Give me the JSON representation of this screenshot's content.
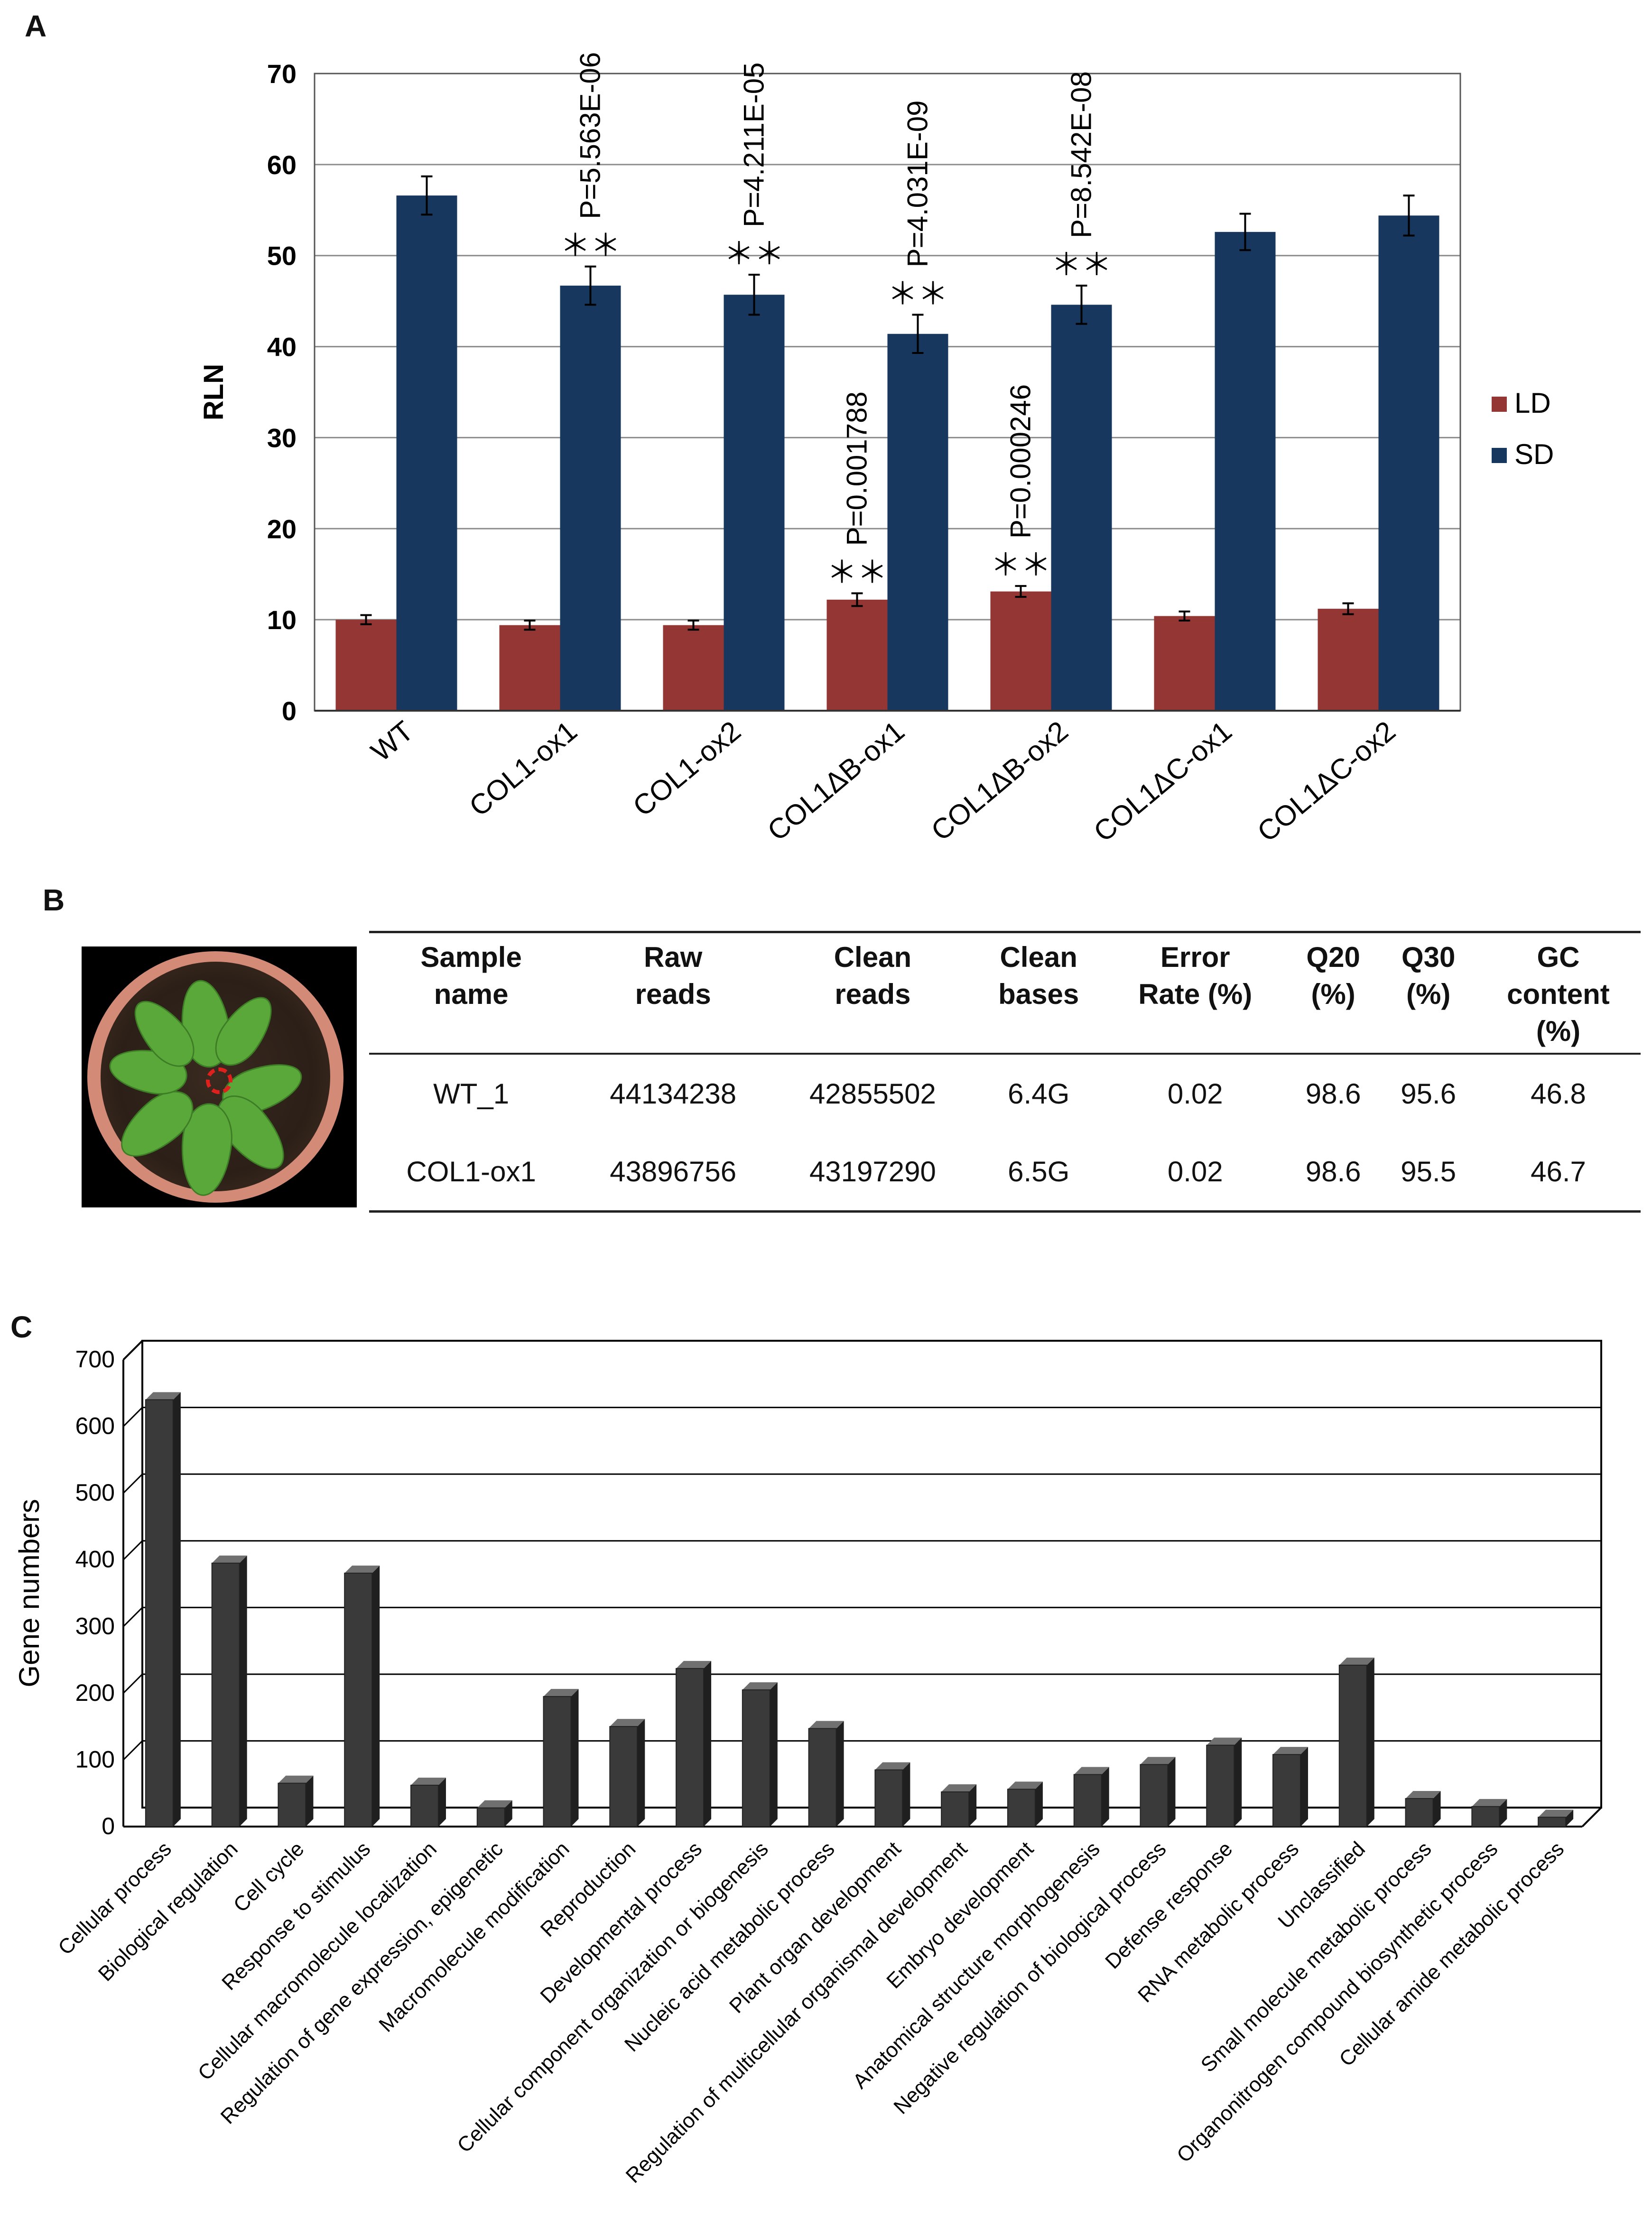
{
  "panels": {
    "a": "A",
    "b": "B",
    "c": "C"
  },
  "colors": {
    "ld": "#943634",
    "sd": "#17375e",
    "bars_c": "#3a3a3a",
    "bars_c_side": "#1f1f1f",
    "bars_c_top": "#707070"
  },
  "chart_data": [
    {
      "type": "bar",
      "panel": "A",
      "ylabel": "RLN",
      "ylim": [
        0,
        70
      ],
      "yticks": [
        0,
        10,
        20,
        30,
        40,
        50,
        60,
        70
      ],
      "grid": true,
      "legend_placement": "right",
      "categories": [
        "WT",
        "COL1-ox1",
        "COL1-ox2",
        "COL1ΔB-ox1",
        "COL1ΔB-ox2",
        "COL1ΔC-ox1",
        "COL1ΔC-ox2"
      ],
      "series": [
        {
          "name": "LD",
          "values": [
            10.0,
            9.4,
            9.4,
            12.2,
            13.1,
            10.4,
            11.2
          ],
          "errors": [
            0.5,
            0.5,
            0.5,
            0.7,
            0.6,
            0.5,
            0.6
          ]
        },
        {
          "name": "SD",
          "values": [
            56.6,
            46.7,
            45.7,
            41.4,
            44.6,
            52.6,
            54.4
          ],
          "errors": [
            2.1,
            2.1,
            2.2,
            2.1,
            2.1,
            2.0,
            2.2
          ]
        }
      ],
      "annotations": [
        {
          "category": "COL1-ox1",
          "series": "SD",
          "stars": "＊＊",
          "p_value": "P=5.563E-06"
        },
        {
          "category": "COL1-ox2",
          "series": "SD",
          "stars": "＊＊",
          "p_value": "P=4.211E-05"
        },
        {
          "category": "COL1ΔB-ox1",
          "series": "SD",
          "stars": "＊＊",
          "p_value": "P=4.031E-09"
        },
        {
          "category": "COL1ΔB-ox2",
          "series": "SD",
          "stars": "＊＊",
          "p_value": "P=8.542E-08"
        },
        {
          "category": "COL1ΔB-ox1",
          "series": "LD",
          "stars": "＊＊",
          "p_value": "P=0.001788"
        },
        {
          "category": "COL1ΔB-ox2",
          "series": "LD",
          "stars": "＊＊",
          "p_value": "P=0.000246"
        }
      ]
    },
    {
      "type": "bar",
      "panel": "C",
      "ylabel": "Gene numbers",
      "ylim": [
        0,
        700
      ],
      "yticks": [
        0,
        100,
        200,
        300,
        400,
        500,
        600,
        700
      ],
      "grid": true,
      "style": "3d",
      "categories": [
        "Cellular process",
        "Biological regulation",
        "Cell cycle",
        "Response to stimulus",
        "Cellular macromolecule localization",
        "Regulation of gene expression, epigenetic",
        "Macromolecule modification",
        "Reproduction",
        "Developmental process",
        "Cellular component organization or biogenesis",
        "Nucleic acid metabolic process",
        "Plant organ development",
        "Regulation of multicellular organismal development",
        "Embryo development",
        "Anatomical structure morphogenesis",
        "Negative regulation of biological process",
        "Defense response",
        "RNA metabolic process",
        "Unclassified",
        "Small molecule  metabolic process",
        "Organonitrogen compound biosynthetic process",
        "Cellular amide metabolic process"
      ],
      "values": [
        640,
        395,
        65,
        380,
        62,
        28,
        195,
        150,
        237,
        205,
        147,
        85,
        52,
        56,
        78,
        93,
        122,
        108,
        242,
        42,
        30,
        14
      ]
    }
  ],
  "table": {
    "headers": [
      "Sample\nname",
      "Raw\nreads",
      "Clean\nreads",
      "Clean\nbases",
      "Error\nRate (%)",
      "Q20\n(%)",
      "Q30\n(%)",
      "GC\ncontent\n(%)"
    ],
    "rows": [
      [
        "WT_1",
        "44134238",
        "42855502",
        "6.4G",
        "0.02",
        "98.6",
        "95.6",
        "46.8"
      ],
      [
        "COL1-ox1",
        "43896756",
        "43197290",
        "6.5G",
        "0.02",
        "98.6",
        "95.5",
        "46.7"
      ]
    ]
  }
}
